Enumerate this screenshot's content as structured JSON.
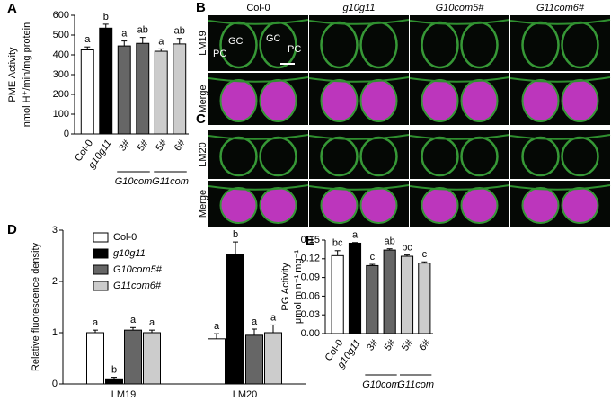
{
  "chart_data": [
    {
      "type": "bar",
      "panel": "A",
      "ylabel": "PME Activity",
      "ylabel_unit": "nmol H⁺/min/mg protein",
      "categories": [
        "Col-0",
        "g10g11",
        "3#",
        "5#",
        "5#",
        "6#"
      ],
      "group_labels": [
        null,
        null,
        "G10com",
        "G10com",
        "G11com",
        "G11com"
      ],
      "values": [
        425,
        535,
        445,
        458,
        418,
        455
      ],
      "errors": [
        15,
        20,
        25,
        30,
        12,
        28
      ],
      "letters": [
        "a",
        "b",
        "a",
        "ab",
        "a",
        "ab"
      ],
      "colors": [
        "#ffffff",
        "#000000",
        "#666666",
        "#666666",
        "#cccccc",
        "#cccccc"
      ],
      "ylim": [
        0,
        600
      ],
      "yticks": [
        0,
        100,
        200,
        300,
        400,
        500,
        600
      ]
    },
    {
      "type": "grouped-bar",
      "panel": "D",
      "ylabel": "Relative fluorescence density",
      "categories": [
        "LM19",
        "LM20"
      ],
      "series": [
        {
          "name": "Col-0",
          "color": "#ffffff",
          "values": [
            1.0,
            0.88
          ],
          "errors": [
            0.05,
            0.1
          ],
          "letters": [
            "a",
            "a"
          ]
        },
        {
          "name": "g10g11",
          "color": "#000000",
          "values": [
            0.1,
            2.52
          ],
          "errors": [
            0.03,
            0.25
          ],
          "letters": [
            "b",
            "b"
          ]
        },
        {
          "name": "G10com5#",
          "color": "#666666",
          "values": [
            1.05,
            0.95
          ],
          "errors": [
            0.05,
            0.12
          ],
          "letters": [
            "a",
            "a"
          ]
        },
        {
          "name": "G11com6#",
          "color": "#cccccc",
          "values": [
            1.0,
            1.0
          ],
          "errors": [
            0.05,
            0.15
          ],
          "letters": [
            "a",
            "a"
          ]
        }
      ],
      "ylim": [
        0,
        3
      ],
      "yticks": [
        0,
        1,
        2,
        3
      ]
    },
    {
      "type": "bar",
      "panel": "E",
      "ylabel": "PG Activity",
      "ylabel_unit": "μmol min⁻¹ mg⁻¹",
      "categories": [
        "Col-0",
        "g10g11",
        "3#",
        "5#",
        "5#",
        "6#"
      ],
      "group_labels": [
        null,
        null,
        "G10com",
        "G10com",
        "G11com",
        "G11com"
      ],
      "values": [
        0.125,
        0.145,
        0.109,
        0.134,
        0.124,
        0.113
      ],
      "errors": [
        0.008,
        0.001,
        0.002,
        0.002,
        0.002,
        0.002
      ],
      "letters": [
        "bc",
        "a",
        "c",
        "ab",
        "bc",
        "c"
      ],
      "colors": [
        "#ffffff",
        "#000000",
        "#666666",
        "#666666",
        "#cccccc",
        "#cccccc"
      ],
      "ylim": [
        0,
        0.15
      ],
      "yticks": [
        {
          "value": 0,
          "label": "0.00"
        },
        {
          "value": 0.03,
          "label": "0.03"
        },
        {
          "value": 0.06,
          "label": "0.06"
        },
        {
          "value": 0.09,
          "label": "0.09"
        },
        {
          "value": 0.12,
          "label": "0.12"
        },
        {
          "value": 0.15,
          "label": "0.15"
        }
      ]
    }
  ],
  "micrographs": {
    "panels": [
      "B",
      "C"
    ],
    "columns": [
      "Col-0",
      "g10g11",
      "G10com5#",
      "G11com6#"
    ],
    "rows": [
      "LM19",
      "Merge",
      "LM20",
      "Merge"
    ],
    "annotations": [
      "PC",
      "GC",
      "GC",
      "PC"
    ]
  }
}
